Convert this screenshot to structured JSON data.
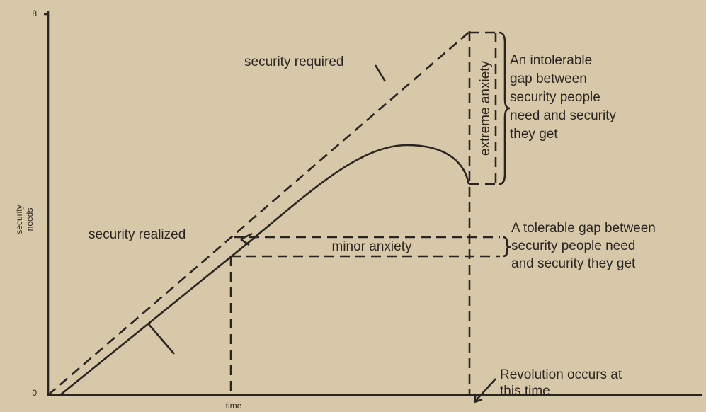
{
  "axes": {
    "y_top": "8",
    "y_bottom": "0",
    "y_label": [
      "security",
      "needs"
    ],
    "x_label": "time"
  },
  "labels": {
    "required": "security required",
    "realized": "security realized",
    "minor": "minor anxiety",
    "extreme": "extreme anxiety"
  },
  "notes": {
    "intolerable": [
      "An intolerable",
      "gap between",
      "security people",
      "need and security",
      "they get"
    ],
    "tolerable": [
      "A tolerable gap between",
      "security people need",
      "and security they get"
    ],
    "revolution": [
      "Revolution occurs at",
      "this time."
    ]
  }
}
